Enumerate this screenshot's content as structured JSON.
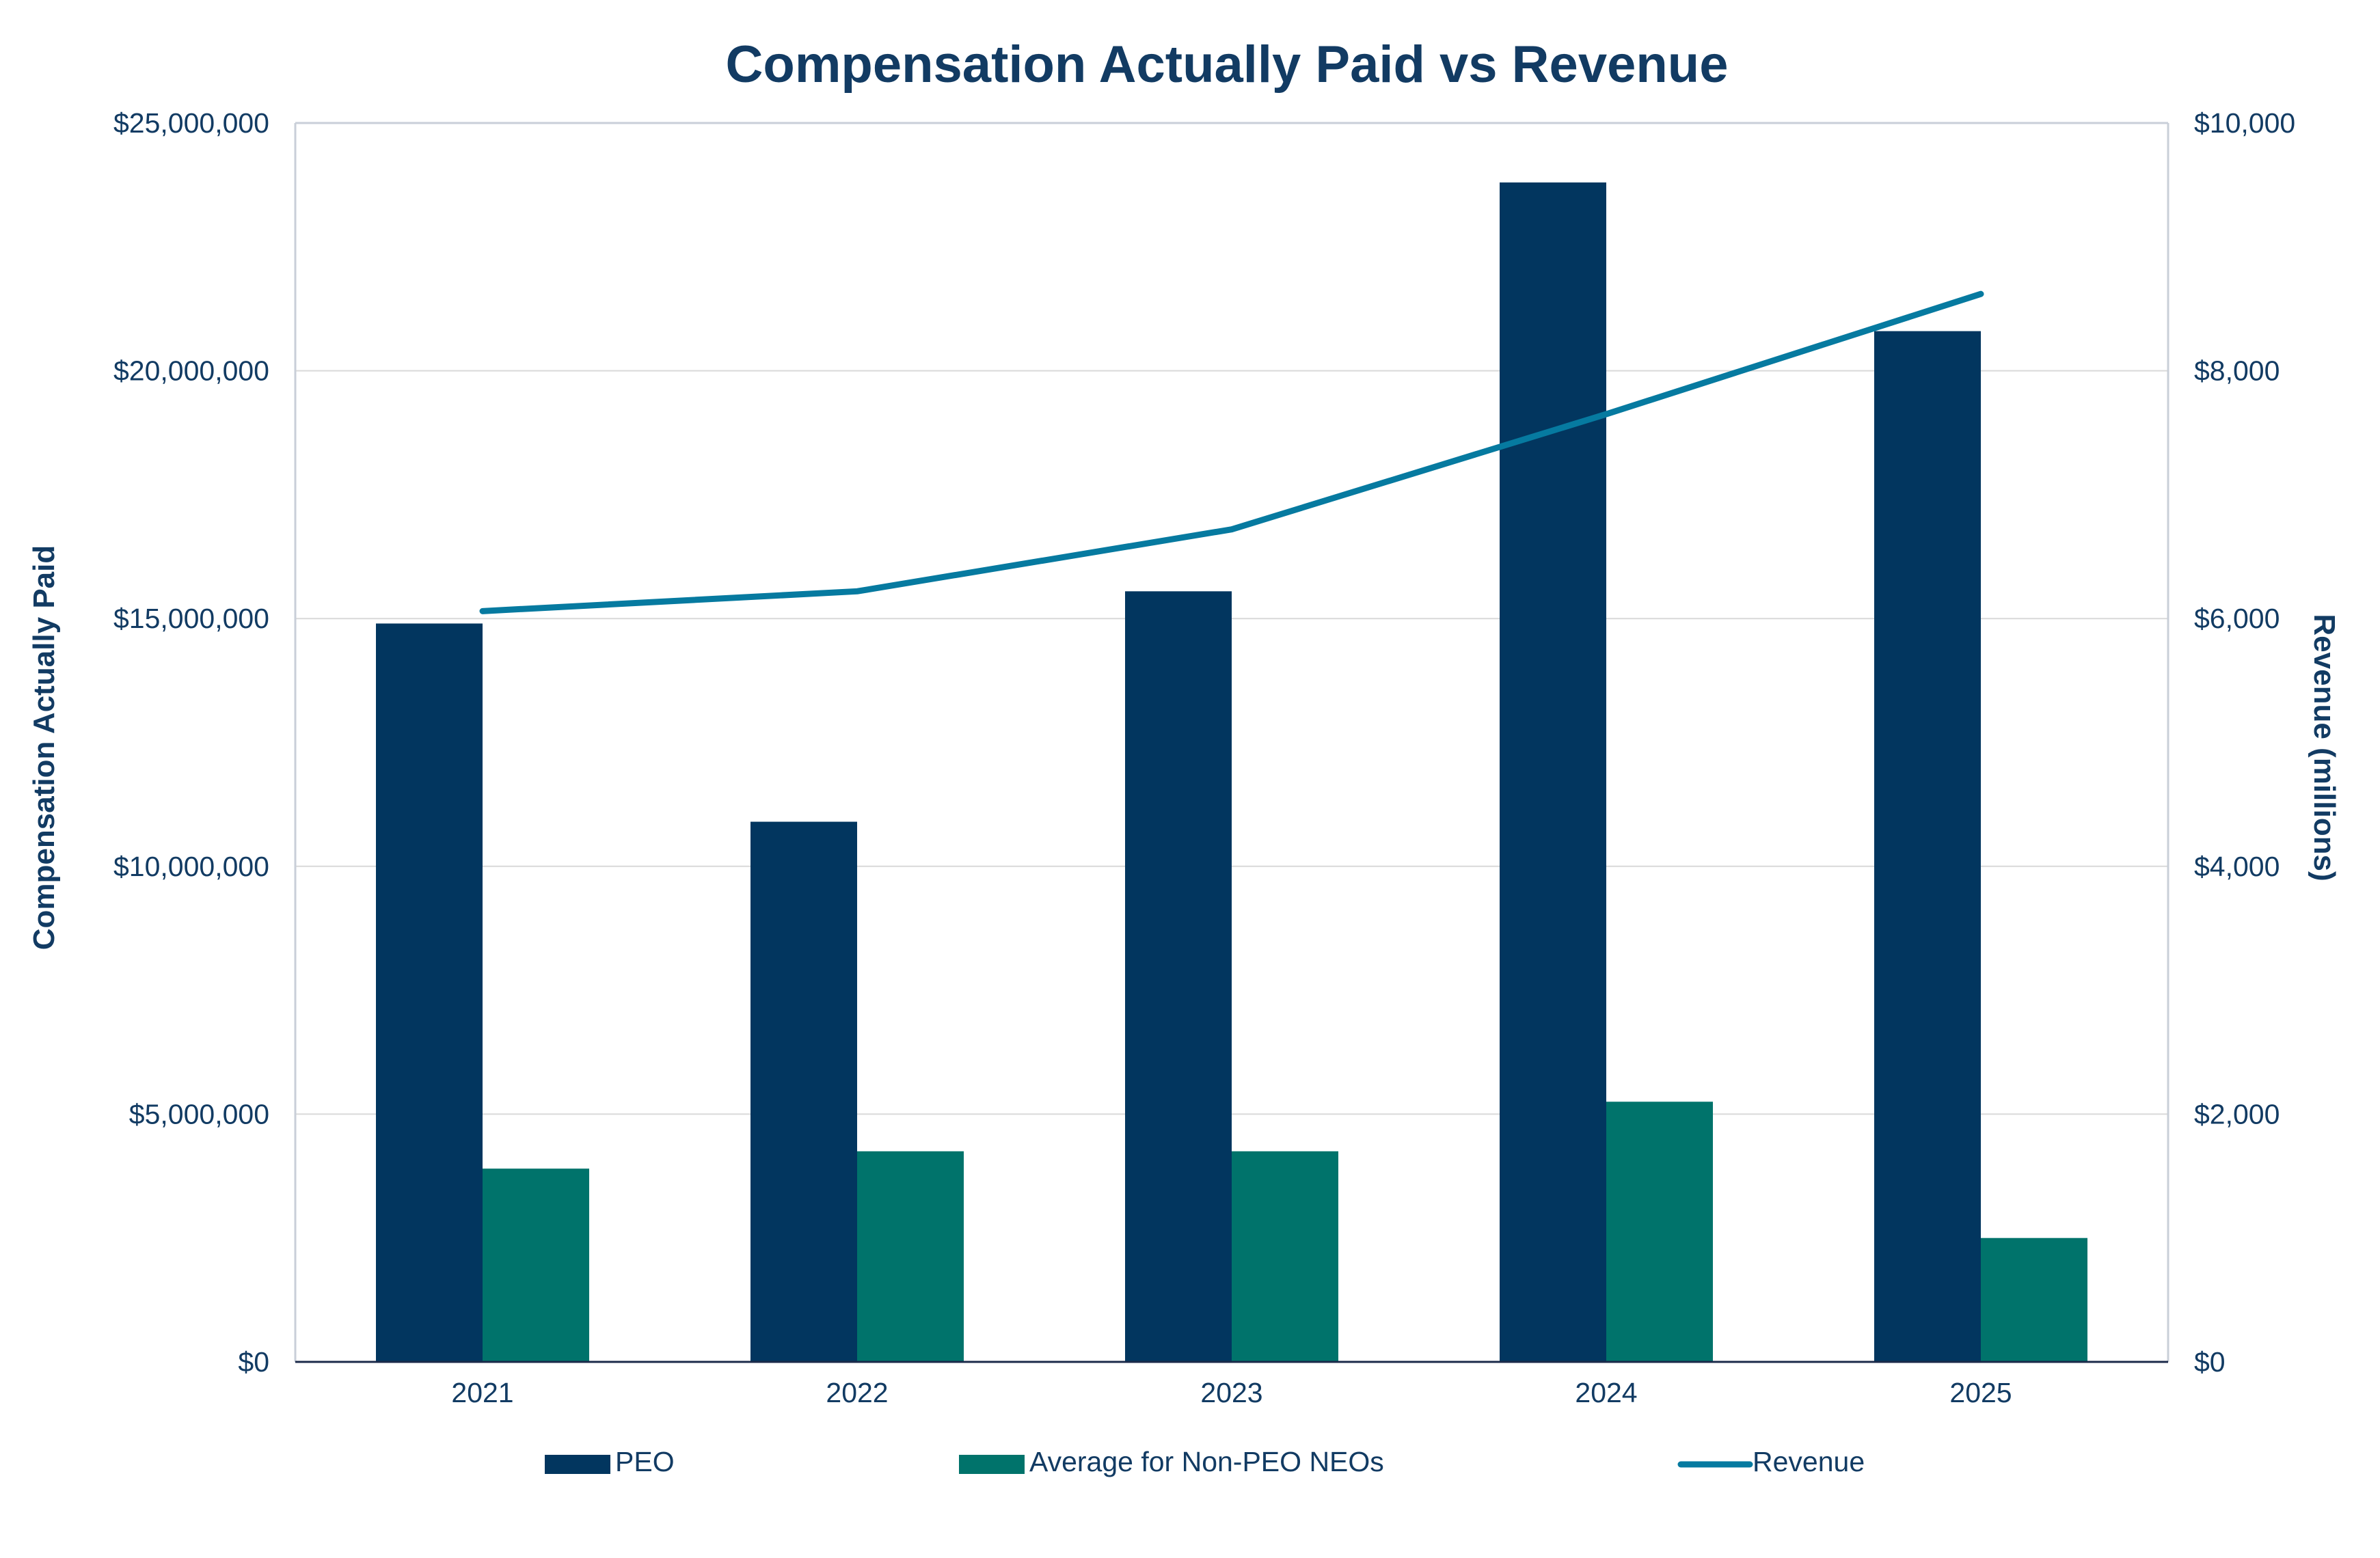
{
  "chart_data": {
    "type": "bar",
    "title": "Compensation Actually Paid vs Revenue",
    "categories": [
      "2021",
      "2022",
      "2023",
      "2024",
      "2025"
    ],
    "series": [
      {
        "name": "PEO",
        "axis": "left",
        "kind": "bar",
        "color": "#02365f",
        "values": [
          14900000,
          10900000,
          15550000,
          23800000,
          20800000
        ]
      },
      {
        "name": "Average for Non-PEO NEOs",
        "axis": "left",
        "kind": "bar",
        "color": "#00736b",
        "values": [
          3900000,
          4250000,
          4250000,
          5250000,
          2500000
        ]
      },
      {
        "name": "Revenue",
        "axis": "right",
        "kind": "line",
        "color": "#067aa0",
        "values": [
          6060,
          6220,
          6720,
          7650,
          8620
        ]
      }
    ],
    "y_left": {
      "label": "Compensation Actually Paid",
      "min": 0,
      "max": 25000000,
      "ticks": [
        0,
        5000000,
        10000000,
        15000000,
        20000000,
        25000000
      ],
      "tick_labels": [
        "$0",
        "$5,000,000",
        "$10,000,000",
        "$15,000,000",
        "$20,000,000",
        "$25,000,000"
      ]
    },
    "y_right": {
      "label": "Revenue (millions)",
      "min": 0,
      "max": 10000,
      "ticks": [
        0,
        2000,
        4000,
        6000,
        8000,
        10000
      ],
      "tick_labels": [
        "$0",
        "$2,000",
        "$4,000",
        "$6,000",
        "$8,000",
        "$10,000"
      ]
    },
    "grid": true,
    "legend": "bottom",
    "colors": {
      "text": "#123b63",
      "grid": "#d9d9d9",
      "frame": "#c9cfd8",
      "baseline": "#1b2a4a"
    }
  }
}
